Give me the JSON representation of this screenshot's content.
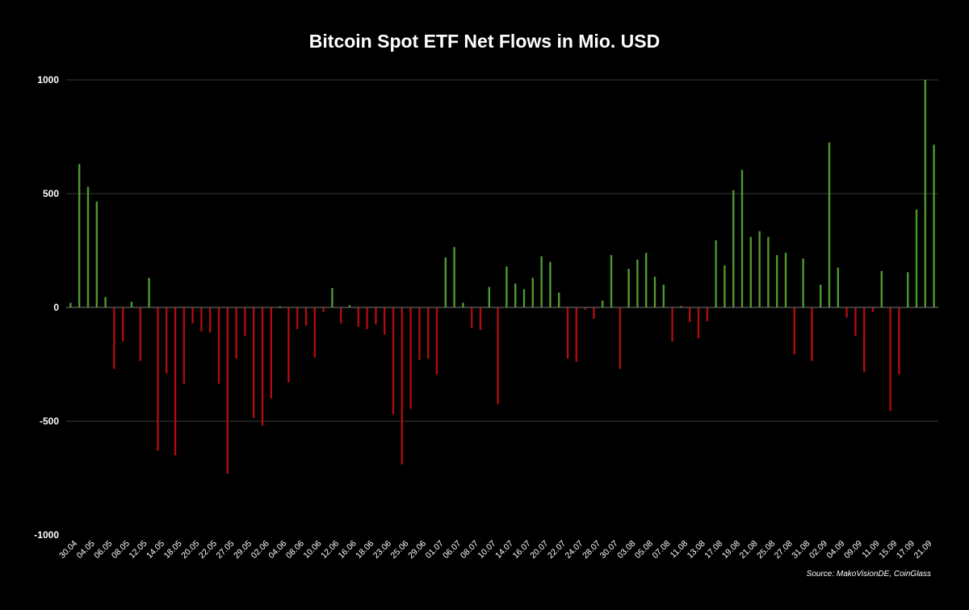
{
  "chart_data": {
    "type": "bar",
    "title": "Bitcoin Spot ETF Net Flows in Mio. USD",
    "source": "Source: MakoVisionDE, CoinGlass",
    "xlabel": "",
    "ylabel": "",
    "ylim": [
      -1000,
      1000
    ],
    "yticks": [
      1000,
      500,
      0,
      -500,
      -1000
    ],
    "grid": true,
    "legend": "none",
    "colors": {
      "positive": "#4e9a2e",
      "negative": "#b00c0c",
      "background": "#000000",
      "grid": "#3a3a3a",
      "text": "#ffffff"
    },
    "x_tick_labels": [
      "30.04",
      "04.05",
      "06.05",
      "08.05",
      "12.05",
      "14.05",
      "18.05",
      "20.05",
      "22.05",
      "27.05",
      "29.05",
      "02.06",
      "04.06",
      "08.06",
      "10.06",
      "12.06",
      "16.06",
      "18.06",
      "23.06",
      "25.06",
      "29.06",
      "01.07",
      "06.07",
      "08.07",
      "10.07",
      "14.07",
      "16.07",
      "20.07",
      "22.07",
      "24.07",
      "28.07",
      "30.07",
      "03.08",
      "05.08",
      "07.08",
      "11.08",
      "13.08",
      "17.08",
      "19.08",
      "21.08",
      "25.08",
      "27.08",
      "31.08",
      "02.09",
      "04.09",
      "09.09",
      "11.09",
      "15.09",
      "17.09",
      "21.09"
    ],
    "values": [
      20,
      630,
      530,
      465,
      45,
      -270,
      -150,
      25,
      -235,
      130,
      -630,
      -290,
      -650,
      -335,
      -70,
      -105,
      -110,
      -335,
      -730,
      -225,
      -125,
      -485,
      -520,
      -400,
      5,
      -330,
      -95,
      -80,
      -220,
      -20,
      85,
      -70,
      10,
      -85,
      -95,
      -75,
      -120,
      -470,
      -690,
      -445,
      -230,
      -225,
      -295,
      220,
      265,
      20,
      -90,
      -100,
      90,
      -425,
      180,
      105,
      80,
      130,
      225,
      200,
      65,
      -225,
      -240,
      -10,
      -50,
      30,
      230,
      -270,
      170,
      210,
      240,
      135,
      100,
      -150,
      5,
      -65,
      -135,
      -60,
      295,
      185,
      515,
      605,
      310,
      335,
      310,
      230,
      240,
      -205,
      215,
      -235,
      100,
      725,
      175,
      -45,
      -125,
      -285,
      -20,
      160,
      -455,
      -295,
      155,
      430,
      1000,
      715
    ]
  }
}
